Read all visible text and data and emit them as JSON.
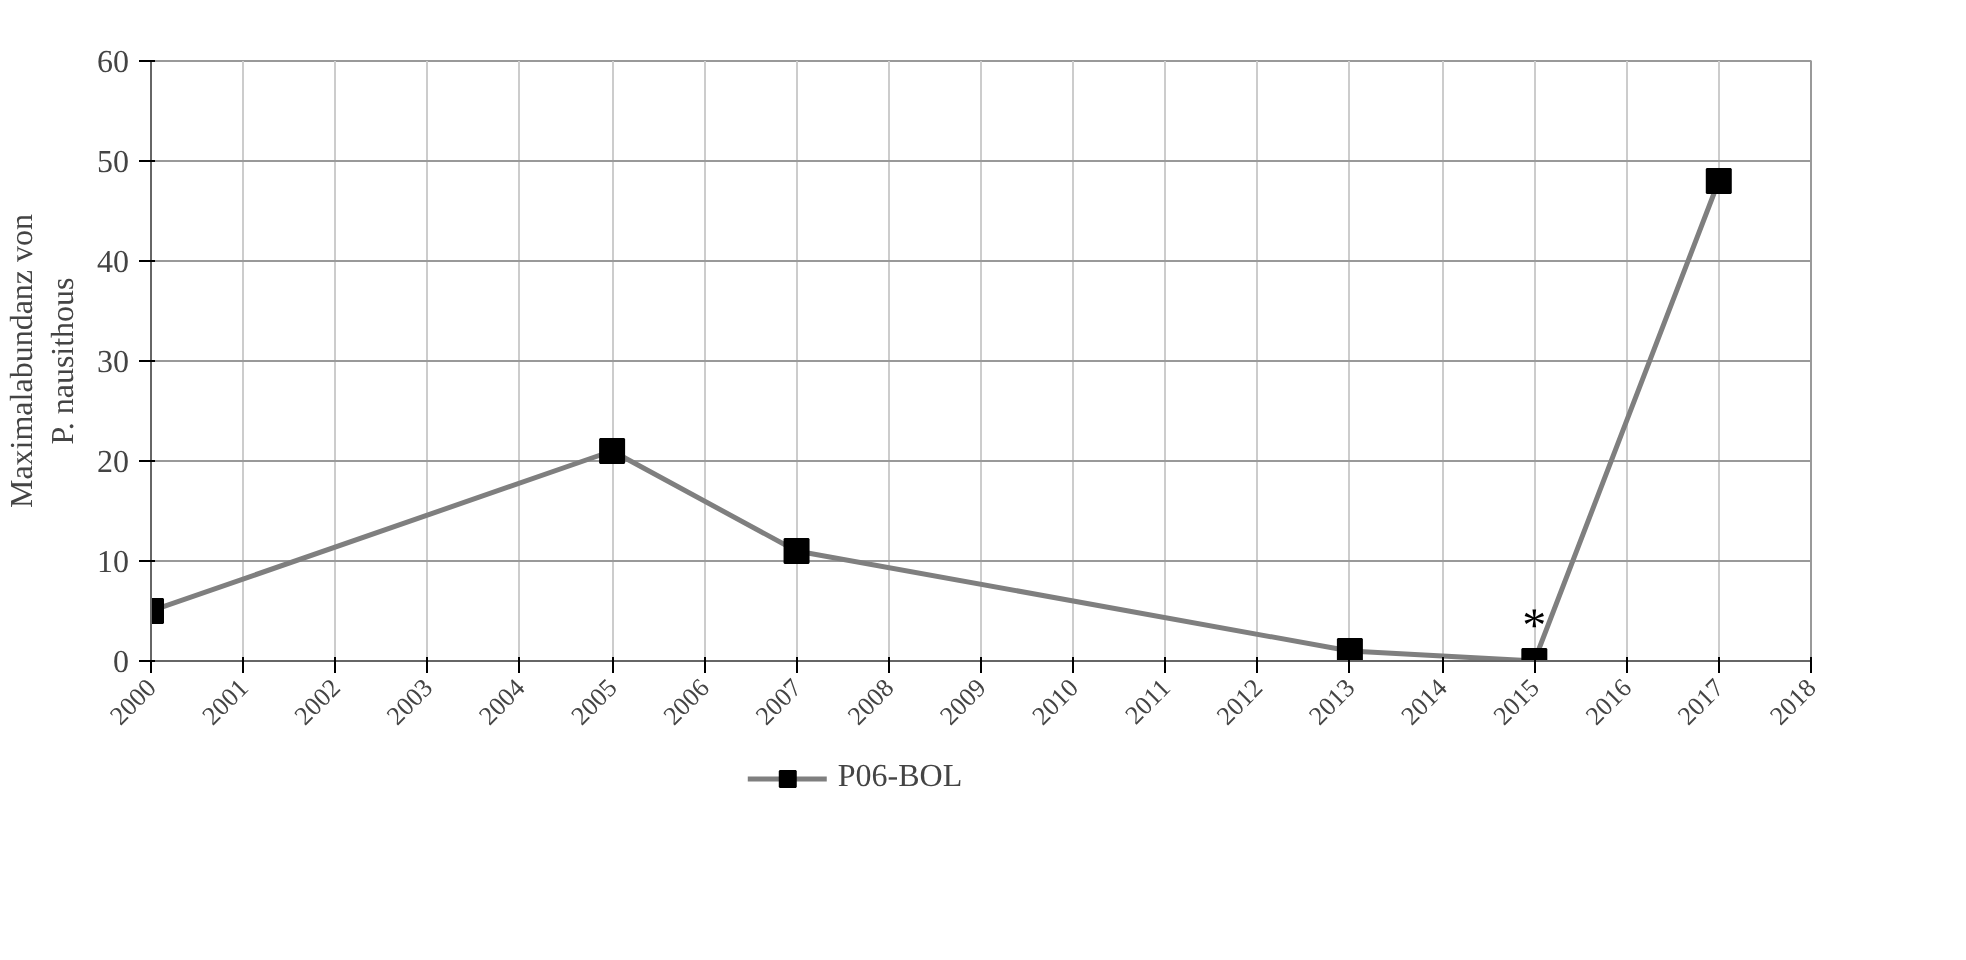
{
  "chart_data": {
    "type": "line",
    "ylabel": "Maximalabundanz von\nP. nausithous",
    "x": [
      2000,
      2005,
      2007,
      2013,
      2015,
      2017
    ],
    "series": [
      {
        "name": "P06-BOL",
        "color": "#7f7f7f",
        "values": [
          5,
          21,
          11,
          1,
          0,
          48
        ]
      }
    ],
    "xlim": [
      2000,
      2018
    ],
    "xticks": [
      2000,
      2001,
      2002,
      2003,
      2004,
      2005,
      2006,
      2007,
      2008,
      2009,
      2010,
      2011,
      2012,
      2013,
      2014,
      2015,
      2016,
      2017,
      2018
    ],
    "ylim": [
      0,
      60
    ],
    "yticks": [
      0,
      10,
      20,
      30,
      40,
      50,
      60
    ],
    "grid": true,
    "legend": "bottom",
    "marker": "square",
    "line_style": "solid",
    "annotations": [
      {
        "text": "*",
        "x": 2015,
        "y": 0
      }
    ]
  }
}
